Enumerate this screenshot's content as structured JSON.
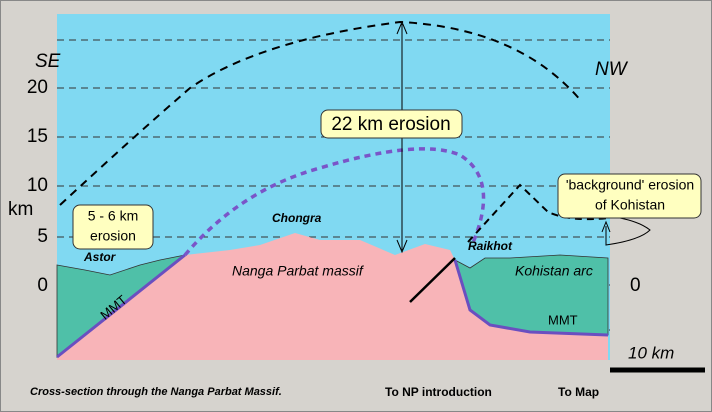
{
  "axis": {
    "unit": "km",
    "left_top": "SE",
    "right_top": "NW",
    "ticks": [
      "20",
      "15",
      "10",
      "5",
      "0"
    ],
    "right_tick": "0"
  },
  "labels": {
    "erosion_main": "22 km erosion",
    "erosion_astor": [
      "5 - 6 km",
      "erosion"
    ],
    "erosion_kohistan": [
      "'background' erosion",
      "of Kohistan"
    ],
    "chongra": "Chongra",
    "astor": "Astor",
    "raikhot": "Raikhot",
    "massif": "Nanga Parbat massif",
    "kohistan_arc": "Kohistan arc",
    "mmt_left": "MMT",
    "mmt_right": "MMT"
  },
  "scale": "10 km",
  "caption": "Cross-section through the Nanga Parbat Massif.",
  "links": [
    "To NP introduction",
    "To Map"
  ]
}
